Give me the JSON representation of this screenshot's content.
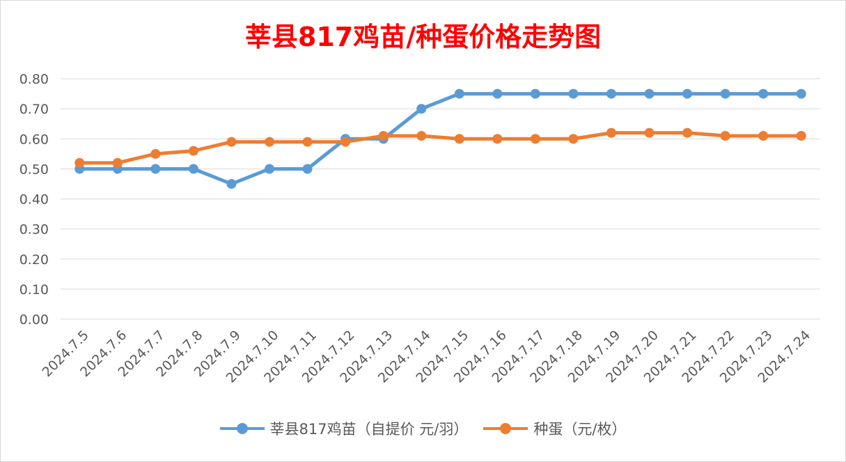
{
  "chart_data": {
    "type": "line",
    "title": "莘县817鸡苗/种蛋价格走势图",
    "xlabel": "",
    "ylabel": "",
    "categories": [
      "2024.7.5",
      "2024.7.6",
      "2024.7.7",
      "2024.7.8",
      "2024.7.9",
      "2024.7.10",
      "2024.7.11",
      "2024.7.12",
      "2024.7.13",
      "2024.7.14",
      "2024.7.15",
      "2024.7.16",
      "2024.7.17",
      "2024.7.18",
      "2024.7.19",
      "2024.7.20",
      "2024.7.21",
      "2024.7.22",
      "2024.7.23",
      "2024.7.24"
    ],
    "ylim": [
      0,
      0.8
    ],
    "yticks": [
      "0.00",
      "0.10",
      "0.20",
      "0.30",
      "0.40",
      "0.50",
      "0.60",
      "0.70",
      "0.80"
    ],
    "grid": true,
    "legend_position": "bottom",
    "series": [
      {
        "name": "莘县817鸡苗（自提价 元/羽）",
        "color": "#5b9bd5",
        "values": [
          0.5,
          0.5,
          0.5,
          0.5,
          0.45,
          0.5,
          0.5,
          0.6,
          0.6,
          0.7,
          0.75,
          0.75,
          0.75,
          0.75,
          0.75,
          0.75,
          0.75,
          0.75,
          0.75,
          0.75
        ]
      },
      {
        "name": "种蛋（元/枚）",
        "color": "#ed7d31",
        "values": [
          0.52,
          0.52,
          0.55,
          0.56,
          0.59,
          0.59,
          0.59,
          0.59,
          0.61,
          0.61,
          0.6,
          0.6,
          0.6,
          0.6,
          0.62,
          0.62,
          0.62,
          0.61,
          0.61,
          0.61
        ]
      }
    ],
    "title_color": "#ff0000"
  }
}
